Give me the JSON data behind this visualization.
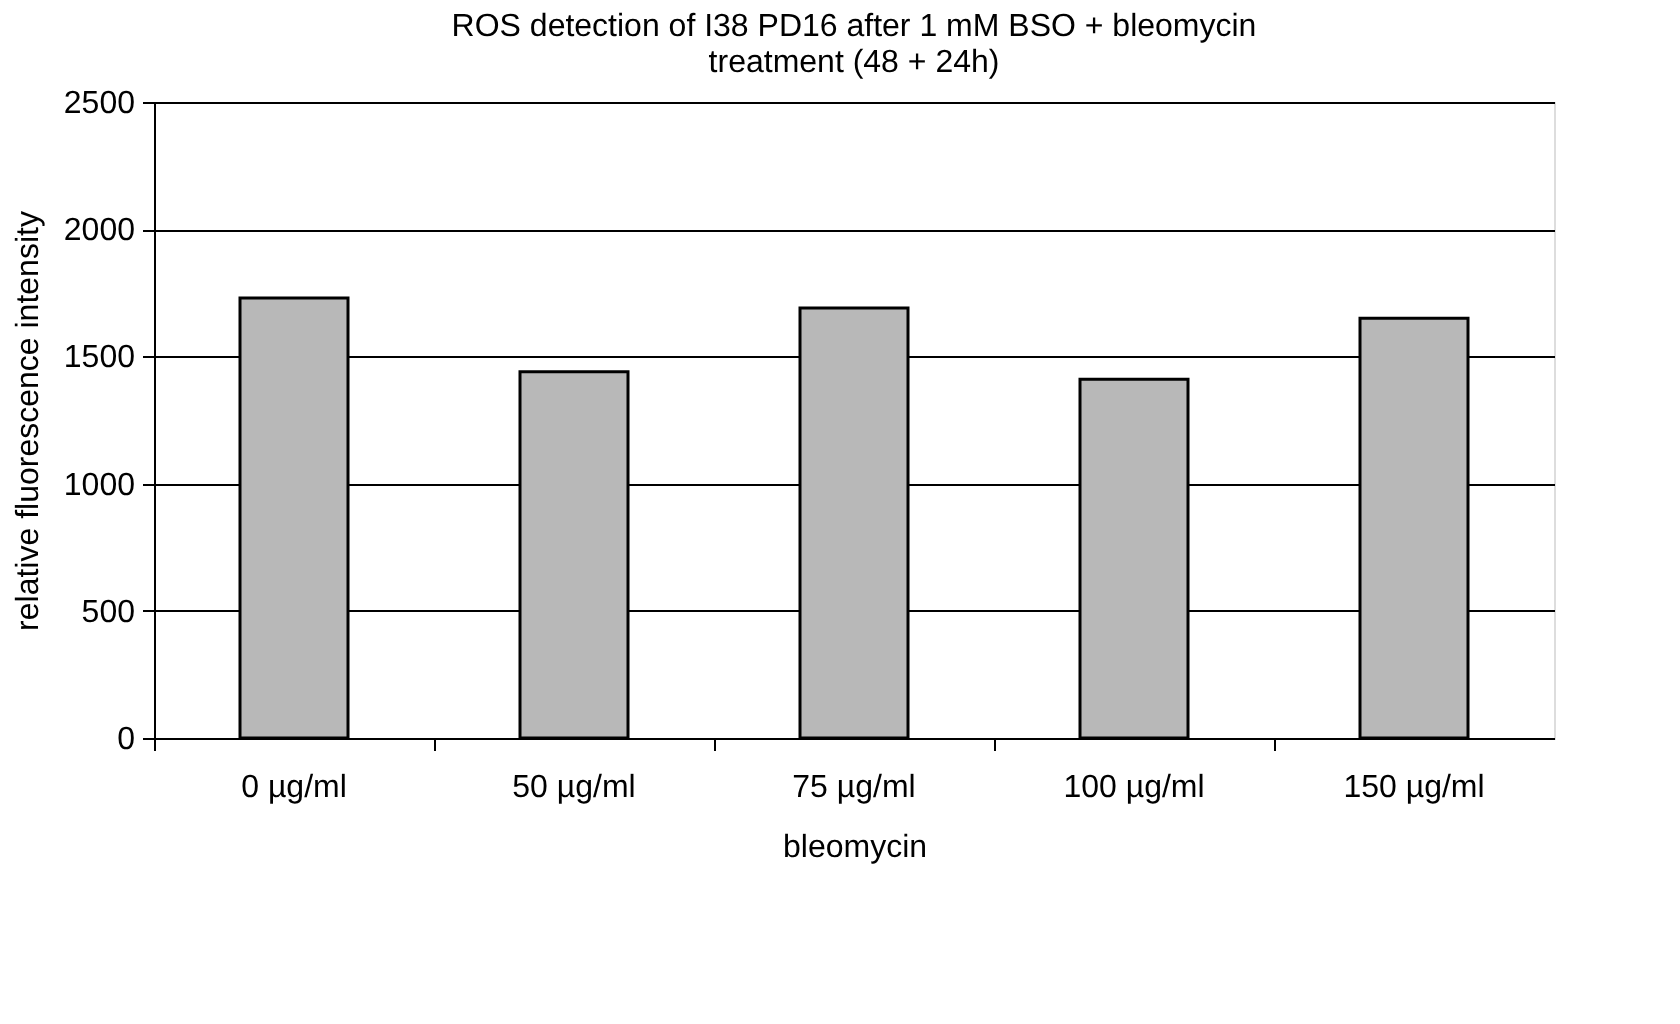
{
  "chart_data": {
    "type": "bar",
    "title": [
      "ROS detection of I38 PD16 after 1 mM BSO + bleomycin",
      "treatment (48 + 24h)"
    ],
    "xlabel": "bleomycin",
    "ylabel": "relative fluorescence intensity",
    "categories": [
      "0 µg/ml",
      "50 µg/ml",
      "75 µg/ml",
      "100 µg/ml",
      "150 µg/ml"
    ],
    "values": [
      1730,
      1440,
      1690,
      1410,
      1650
    ],
    "color": "#b8b8b8",
    "ylim": [
      0,
      2500
    ],
    "yticks": [
      0,
      500,
      1000,
      1500,
      2000,
      2500
    ],
    "grid": "y"
  }
}
